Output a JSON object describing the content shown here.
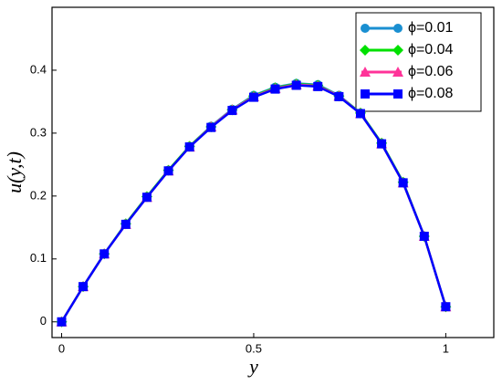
{
  "chart_data": {
    "type": "line",
    "xlabel": "y",
    "ylabel": "u(y,t)",
    "x": [
      0,
      0.056,
      0.111,
      0.167,
      0.222,
      0.278,
      0.333,
      0.389,
      0.444,
      0.5,
      0.556,
      0.611,
      0.667,
      0.722,
      0.778,
      0.833,
      0.889,
      0.944,
      1.0
    ],
    "series": [
      {
        "name": "ϕ=0.01",
        "color": "#1a8fd1",
        "marker": "circle",
        "values": [
          0,
          0.056,
          0.108,
          0.156,
          0.199,
          0.241,
          0.279,
          0.311,
          0.338,
          0.36,
          0.373,
          0.379,
          0.377,
          0.36,
          0.332,
          0.284,
          0.222,
          0.136,
          0.024
        ]
      },
      {
        "name": "ϕ=0.04",
        "color": "#00e000",
        "marker": "diamond",
        "values": [
          0,
          0.056,
          0.108,
          0.156,
          0.199,
          0.241,
          0.279,
          0.31,
          0.337,
          0.359,
          0.372,
          0.378,
          0.376,
          0.359,
          0.332,
          0.284,
          0.222,
          0.136,
          0.024
        ]
      },
      {
        "name": "ϕ=0.06",
        "color": "#ff3399",
        "marker": "triangle",
        "values": [
          0,
          0.056,
          0.108,
          0.155,
          0.198,
          0.24,
          0.278,
          0.31,
          0.337,
          0.358,
          0.371,
          0.377,
          0.375,
          0.359,
          0.331,
          0.283,
          0.221,
          0.136,
          0.024
        ]
      },
      {
        "name": "ϕ=0.08",
        "color": "#0000ff",
        "marker": "square",
        "values": [
          0,
          0.056,
          0.108,
          0.155,
          0.198,
          0.24,
          0.278,
          0.309,
          0.336,
          0.357,
          0.37,
          0.376,
          0.374,
          0.358,
          0.331,
          0.283,
          0.221,
          0.136,
          0.024
        ]
      }
    ],
    "xlim": [
      -0.025,
      1.125
    ],
    "xticks": [
      0,
      0.5,
      1
    ],
    "ylim": [
      -0.025,
      0.5
    ],
    "yticks": [
      0,
      0.1,
      0.2,
      0.3,
      0.4
    ],
    "legend": "upper right",
    "grid": false
  }
}
